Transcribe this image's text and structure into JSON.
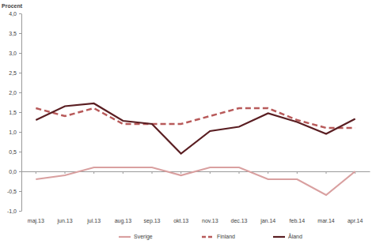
{
  "chart_data": {
    "type": "line",
    "y_label": "Procent",
    "categories": [
      "maj.13",
      "jun.13",
      "jul.13",
      "aug.13",
      "sep.13",
      "okt.13",
      "nov.13",
      "dec.13",
      "jan.14",
      "feb.14",
      "mar.14",
      "apr.14"
    ],
    "series": [
      {
        "name": "Sverige",
        "color": "#d9a0a0",
        "line_style": "solid",
        "values": [
          -0.2,
          -0.1,
          0.1,
          0.1,
          0.1,
          -0.1,
          0.1,
          0.1,
          -0.2,
          -0.2,
          -0.6,
          0.0
        ]
      },
      {
        "name": "Finland",
        "color": "#b85a5a",
        "line_style": "dashed",
        "values": [
          1.6,
          1.4,
          1.6,
          1.2,
          1.2,
          1.2,
          1.4,
          1.6,
          1.6,
          1.3,
          1.1,
          1.1
        ]
      },
      {
        "name": "Åland",
        "color": "#5a1e22",
        "line_style": "solid",
        "values": [
          1.3,
          1.65,
          1.72,
          1.28,
          1.2,
          0.45,
          1.02,
          1.13,
          1.47,
          1.25,
          0.95,
          1.33
        ]
      }
    ],
    "ylim": [
      -1,
      4
    ],
    "yticks": [
      {
        "value": -1,
        "label": "-1,0"
      },
      {
        "value": -0.5,
        "label": "-0,5"
      },
      {
        "value": 0,
        "label": "0,0"
      },
      {
        "value": 0.5,
        "label": "0,5"
      },
      {
        "value": 1,
        "label": "1,0"
      },
      {
        "value": 1.5,
        "label": "1,5"
      },
      {
        "value": 2,
        "label": "2,0"
      },
      {
        "value": 2.5,
        "label": "2,5"
      },
      {
        "value": 3,
        "label": "3,0"
      },
      {
        "value": 3.5,
        "label": "3,5"
      },
      {
        "value": 4,
        "label": "4,0"
      }
    ],
    "grid": false,
    "legend": "bottom"
  }
}
